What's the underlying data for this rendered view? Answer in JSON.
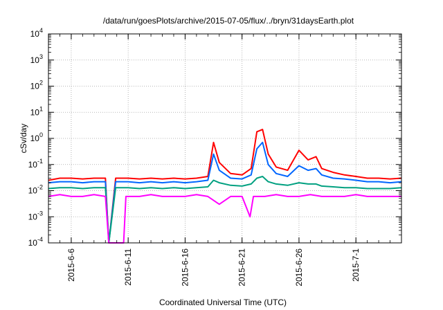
{
  "chart_data": {
    "type": "line",
    "title": "/data/run/goesPlots/archive/2015-07-05/flux/../bryn/31daysEarth.plot",
    "xlabel": "Coordinated Universal Time (UTC)",
    "ylabel": "cSv/day",
    "y_scale": "log",
    "ylim": [
      0.0001,
      10000
    ],
    "xlim": [
      "2015-06-04",
      "2015-07-05"
    ],
    "grid": true,
    "legend": "none",
    "y_ticks": [
      {
        "base": "10",
        "exp": "-4",
        "value": 0.0001
      },
      {
        "base": "10",
        "exp": "-3",
        "value": 0.001
      },
      {
        "base": "10",
        "exp": "-2",
        "value": 0.01
      },
      {
        "base": "10",
        "exp": "-1",
        "value": 0.1
      },
      {
        "base": "10",
        "exp": "0",
        "value": 1
      },
      {
        "base": "10",
        "exp": "1",
        "value": 10
      },
      {
        "base": "10",
        "exp": "2",
        "value": 100
      },
      {
        "base": "10",
        "exp": "3",
        "value": 1000
      },
      {
        "base": "10",
        "exp": "4",
        "value": 10000
      }
    ],
    "x_ticks": [
      "2015-6-6",
      "2015-6-11",
      "2015-6-16",
      "2015-6-21",
      "2015-6-26",
      "2015-7-1"
    ],
    "series": [
      {
        "color": "#ff0000",
        "values": [
          [
            "2015-06-04",
            0.025
          ],
          [
            "2015-06-05",
            0.03
          ],
          [
            "2015-06-06",
            0.03
          ],
          [
            "2015-06-07",
            0.028
          ],
          [
            "2015-06-08",
            0.03
          ],
          [
            "2015-06-09",
            0.03
          ],
          [
            "2015-06-09.3",
            0.0001
          ],
          [
            "2015-06-09.9",
            0.03
          ],
          [
            "2015-06-11",
            0.03
          ],
          [
            "2015-06-12",
            0.028
          ],
          [
            "2015-06-13",
            0.03
          ],
          [
            "2015-06-14",
            0.028
          ],
          [
            "2015-06-15",
            0.03
          ],
          [
            "2015-06-16",
            0.028
          ],
          [
            "2015-06-17",
            0.03
          ],
          [
            "2015-06-18",
            0.035
          ],
          [
            "2015-06-18.5",
            0.7
          ],
          [
            "2015-06-19",
            0.12
          ],
          [
            "2015-06-20",
            0.045
          ],
          [
            "2015-06-21",
            0.04
          ],
          [
            "2015-06-21.8",
            0.07
          ],
          [
            "2015-06-22.3",
            1.8
          ],
          [
            "2015-06-22.8",
            2.2
          ],
          [
            "2015-06-23.3",
            0.25
          ],
          [
            "2015-06-24",
            0.08
          ],
          [
            "2015-06-25",
            0.06
          ],
          [
            "2015-06-26",
            0.35
          ],
          [
            "2015-06-26.8",
            0.15
          ],
          [
            "2015-06-27.5",
            0.2
          ],
          [
            "2015-06-28",
            0.07
          ],
          [
            "2015-06-29",
            0.05
          ],
          [
            "2015-06-30",
            0.04
          ],
          [
            "2015-07-01",
            0.035
          ],
          [
            "2015-07-02",
            0.03
          ],
          [
            "2015-07-03",
            0.03
          ],
          [
            "2015-07-04",
            0.028
          ],
          [
            "2015-07-05",
            0.03
          ]
        ]
      },
      {
        "color": "#0066ff",
        "values": [
          [
            "2015-06-04",
            0.02
          ],
          [
            "2015-06-05",
            0.022
          ],
          [
            "2015-06-06",
            0.022
          ],
          [
            "2015-06-07",
            0.02
          ],
          [
            "2015-06-08",
            0.022
          ],
          [
            "2015-06-09",
            0.022
          ],
          [
            "2015-06-09.3",
            0.0001
          ],
          [
            "2015-06-09.9",
            0.022
          ],
          [
            "2015-06-11",
            0.022
          ],
          [
            "2015-06-12",
            0.02
          ],
          [
            "2015-06-13",
            0.022
          ],
          [
            "2015-06-14",
            0.02
          ],
          [
            "2015-06-15",
            0.022
          ],
          [
            "2015-06-16",
            0.02
          ],
          [
            "2015-06-17",
            0.022
          ],
          [
            "2015-06-18",
            0.025
          ],
          [
            "2015-06-18.5",
            0.25
          ],
          [
            "2015-06-19",
            0.06
          ],
          [
            "2015-06-20",
            0.03
          ],
          [
            "2015-06-21",
            0.028
          ],
          [
            "2015-06-21.8",
            0.04
          ],
          [
            "2015-06-22.3",
            0.4
          ],
          [
            "2015-06-22.8",
            0.7
          ],
          [
            "2015-06-23.3",
            0.1
          ],
          [
            "2015-06-24",
            0.045
          ],
          [
            "2015-06-25",
            0.035
          ],
          [
            "2015-06-26",
            0.09
          ],
          [
            "2015-06-26.8",
            0.06
          ],
          [
            "2015-06-27.5",
            0.07
          ],
          [
            "2015-06-28",
            0.04
          ],
          [
            "2015-06-29",
            0.03
          ],
          [
            "2015-06-30",
            0.028
          ],
          [
            "2015-07-01",
            0.025
          ],
          [
            "2015-07-02",
            0.022
          ],
          [
            "2015-07-03",
            0.022
          ],
          [
            "2015-07-04",
            0.02
          ],
          [
            "2015-07-05",
            0.022
          ]
        ]
      },
      {
        "color": "#00a080",
        "values": [
          [
            "2015-06-04",
            0.012
          ],
          [
            "2015-06-05",
            0.013
          ],
          [
            "2015-06-06",
            0.013
          ],
          [
            "2015-06-07",
            0.012
          ],
          [
            "2015-06-08",
            0.013
          ],
          [
            "2015-06-09",
            0.013
          ],
          [
            "2015-06-09.3",
            0.0001
          ],
          [
            "2015-06-09.9",
            0.013
          ],
          [
            "2015-06-11",
            0.013
          ],
          [
            "2015-06-12",
            0.012
          ],
          [
            "2015-06-13",
            0.013
          ],
          [
            "2015-06-14",
            0.012
          ],
          [
            "2015-06-15",
            0.013
          ],
          [
            "2015-06-16",
            0.012
          ],
          [
            "2015-06-17",
            0.013
          ],
          [
            "2015-06-18",
            0.014
          ],
          [
            "2015-06-18.5",
            0.025
          ],
          [
            "2015-06-19",
            0.02
          ],
          [
            "2015-06-20",
            0.016
          ],
          [
            "2015-06-21",
            0.015
          ],
          [
            "2015-06-21.8",
            0.018
          ],
          [
            "2015-06-22.3",
            0.03
          ],
          [
            "2015-06-22.8",
            0.035
          ],
          [
            "2015-06-23.3",
            0.022
          ],
          [
            "2015-06-24",
            0.018
          ],
          [
            "2015-06-25",
            0.016
          ],
          [
            "2015-06-26",
            0.02
          ],
          [
            "2015-06-26.8",
            0.018
          ],
          [
            "2015-06-27.5",
            0.018
          ],
          [
            "2015-06-28",
            0.015
          ],
          [
            "2015-06-29",
            0.014
          ],
          [
            "2015-06-30",
            0.013
          ],
          [
            "2015-07-01",
            0.013
          ],
          [
            "2015-07-02",
            0.012
          ],
          [
            "2015-07-03",
            0.012
          ],
          [
            "2015-07-04",
            0.012
          ],
          [
            "2015-07-05",
            0.013
          ]
        ]
      },
      {
        "color": "#ff00ff",
        "values": [
          [
            "2015-06-04",
            0.006
          ],
          [
            "2015-06-05",
            0.007
          ],
          [
            "2015-06-06",
            0.006
          ],
          [
            "2015-06-07",
            0.006
          ],
          [
            "2015-06-08",
            0.007
          ],
          [
            "2015-06-09",
            0.006
          ],
          [
            "2015-06-09.3",
            0.0001
          ],
          [
            "2015-06-10.6",
            0.0001
          ],
          [
            "2015-06-10.8",
            0.006
          ],
          [
            "2015-06-11",
            0.006
          ],
          [
            "2015-06-12",
            0.006
          ],
          [
            "2015-06-13",
            0.007
          ],
          [
            "2015-06-14",
            0.006
          ],
          [
            "2015-06-15",
            0.006
          ],
          [
            "2015-06-16",
            0.006
          ],
          [
            "2015-06-17",
            0.007
          ],
          [
            "2015-06-18",
            0.006
          ],
          [
            "2015-06-19",
            0.003
          ],
          [
            "2015-06-20",
            0.006
          ],
          [
            "2015-06-21",
            0.006
          ],
          [
            "2015-06-21.7",
            0.001
          ],
          [
            "2015-06-22",
            0.006
          ],
          [
            "2015-06-23",
            0.006
          ],
          [
            "2015-06-24",
            0.007
          ],
          [
            "2015-06-25",
            0.006
          ],
          [
            "2015-06-26",
            0.006
          ],
          [
            "2015-06-27",
            0.007
          ],
          [
            "2015-06-28",
            0.006
          ],
          [
            "2015-06-29",
            0.006
          ],
          [
            "2015-06-30",
            0.006
          ],
          [
            "2015-07-01",
            0.007
          ],
          [
            "2015-07-02",
            0.006
          ],
          [
            "2015-07-03",
            0.006
          ],
          [
            "2015-07-04",
            0.006
          ],
          [
            "2015-07-05",
            0.006
          ]
        ]
      }
    ]
  }
}
